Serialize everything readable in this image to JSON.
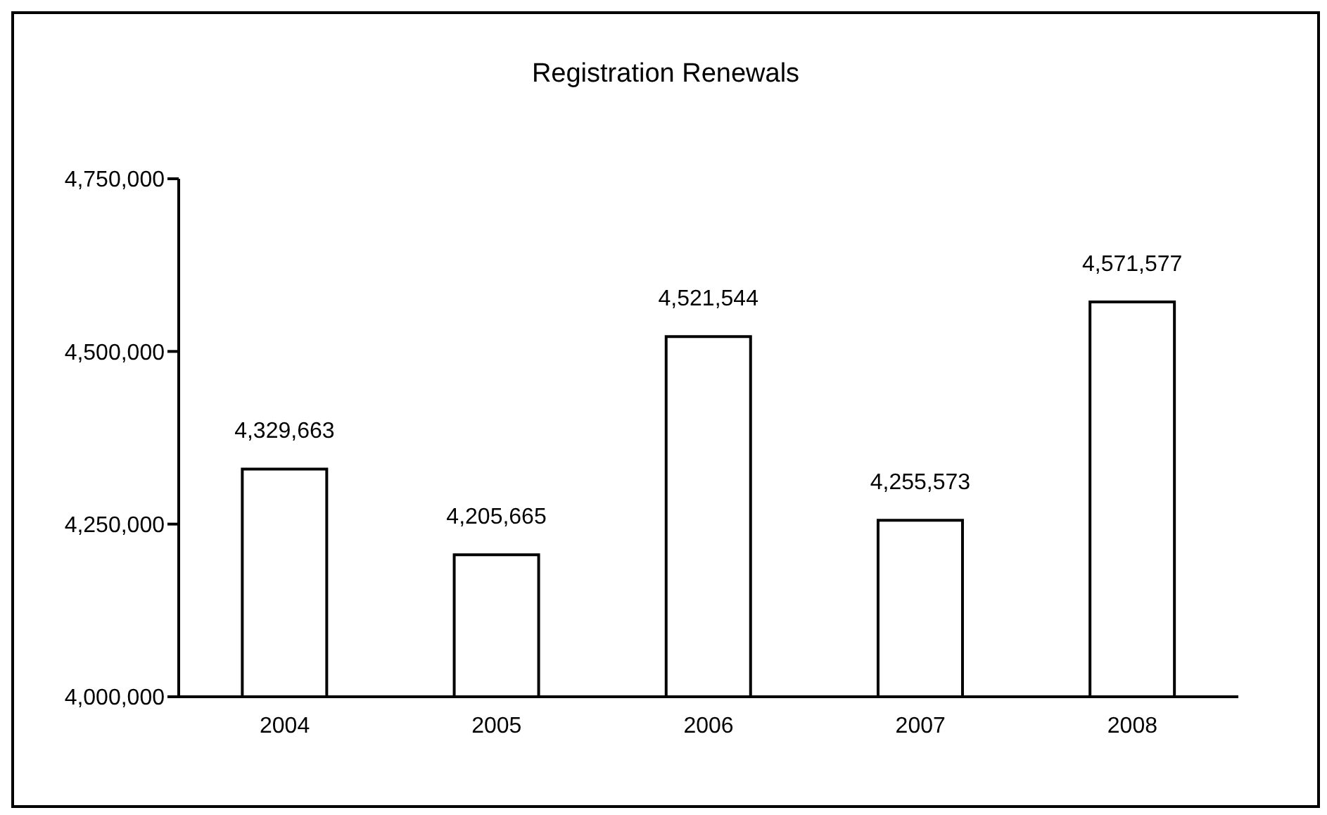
{
  "chart_data": {
    "type": "bar",
    "title": "Registration Renewals",
    "categories": [
      "2004",
      "2005",
      "2006",
      "2007",
      "2008"
    ],
    "values": [
      4329663,
      4205665,
      4521544,
      4255573,
      4571577
    ],
    "color": "#ffffff",
    "ylim": [
      4000000,
      4750000
    ],
    "yticks": [
      {
        "value": 4000000,
        "label": "4,000,000"
      },
      {
        "value": 4250000,
        "label": "4,250,000"
      },
      {
        "value": 4500000,
        "label": "4,500,000"
      },
      {
        "value": 4750000,
        "label": "4,750,000"
      }
    ],
    "value_labels": [
      "4,329,663",
      "4,205,665",
      "4,521,544",
      "4,255,573",
      "4,571,577"
    ],
    "grid": false,
    "legend": false
  }
}
